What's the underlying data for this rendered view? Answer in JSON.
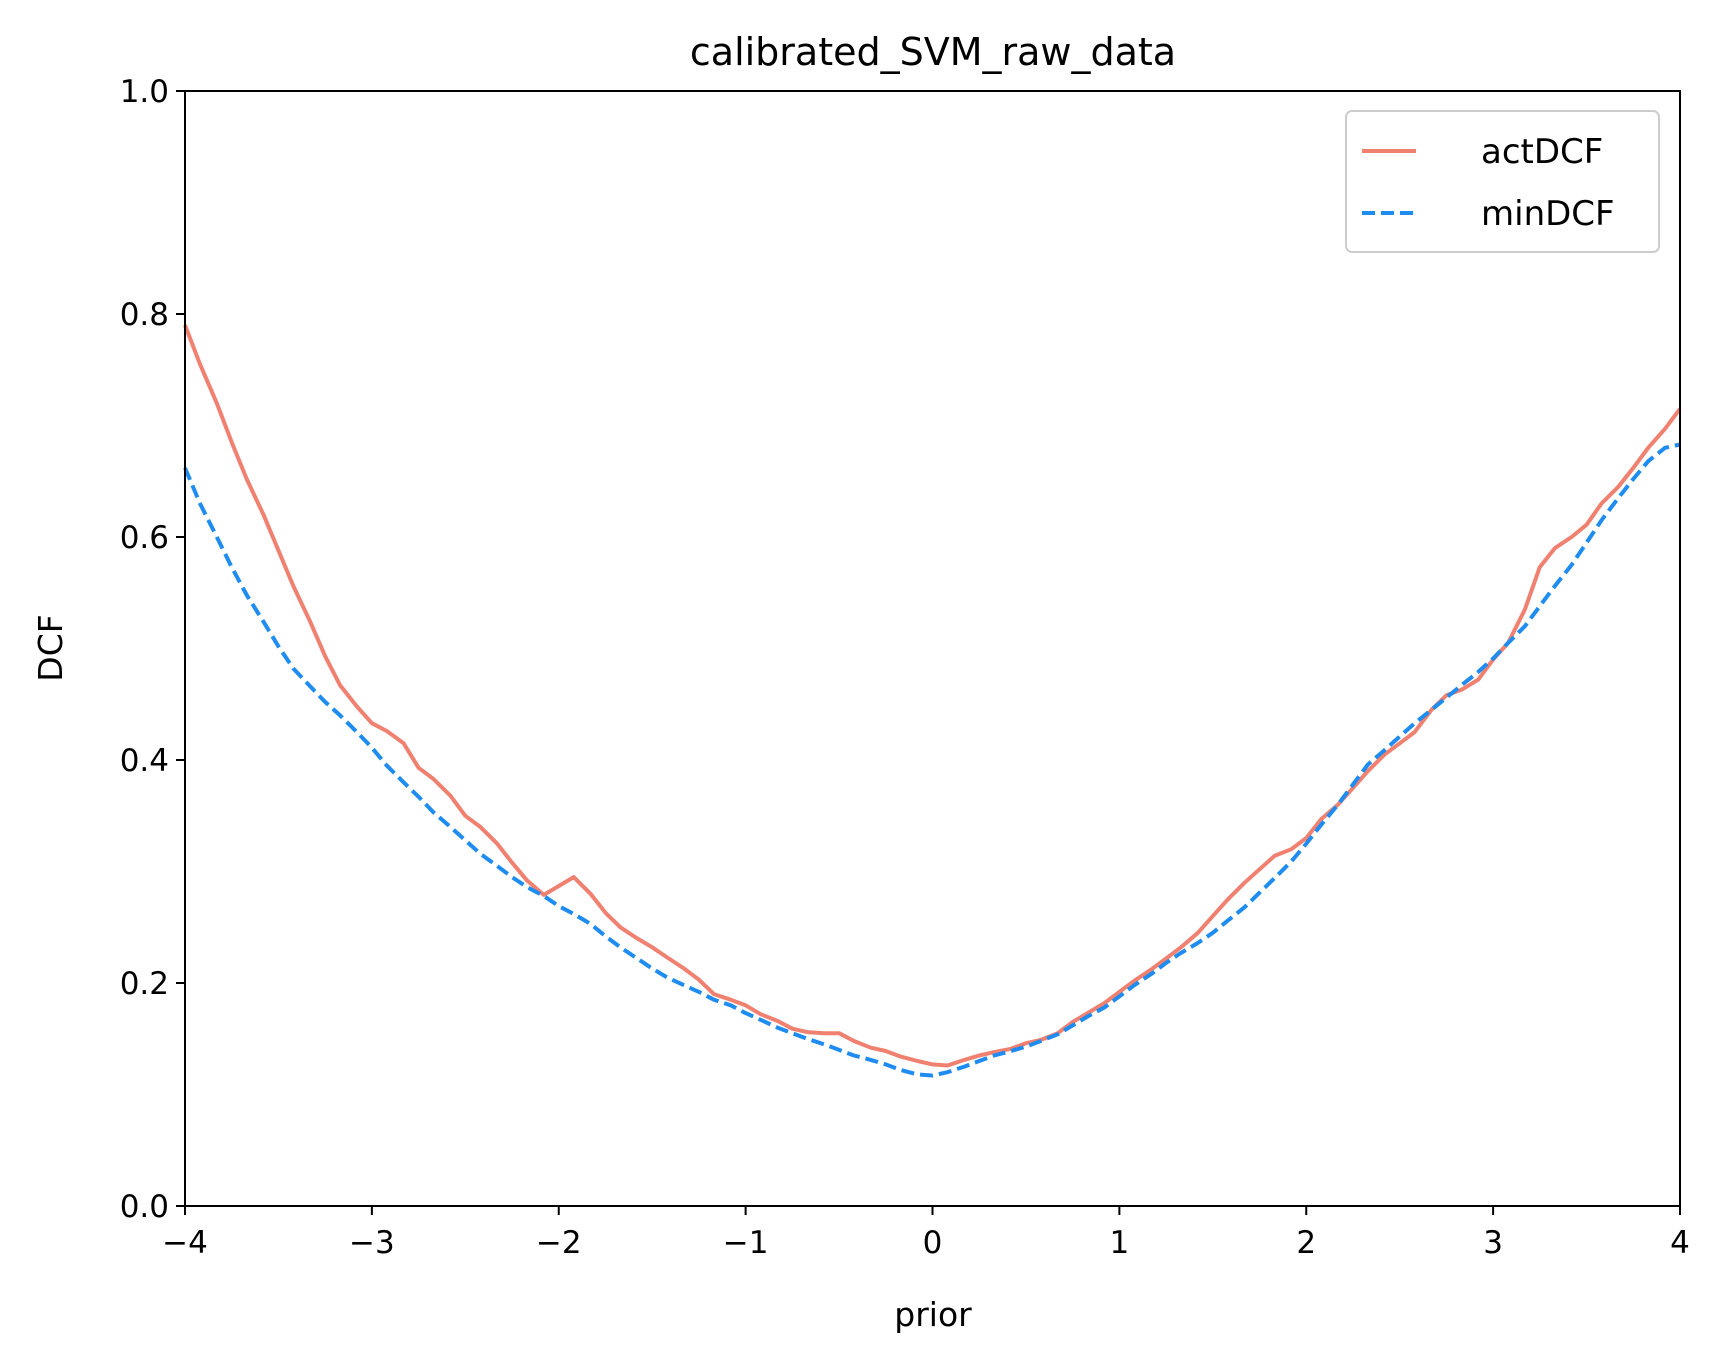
{
  "chart_data": {
    "type": "line",
    "title": "calibrated_SVM_raw_data",
    "xlabel": "prior",
    "ylabel": "DCF",
    "xlim": [
      -4,
      4
    ],
    "ylim": [
      0,
      1
    ],
    "x_ticks": [
      {
        "value": -4,
        "label": "−4"
      },
      {
        "value": -3,
        "label": "−3"
      },
      {
        "value": -2,
        "label": "−2"
      },
      {
        "value": -1,
        "label": "−1"
      },
      {
        "value": 0,
        "label": "0"
      },
      {
        "value": 1,
        "label": "1"
      },
      {
        "value": 2,
        "label": "2"
      },
      {
        "value": 3,
        "label": "3"
      },
      {
        "value": 4,
        "label": "4"
      }
    ],
    "y_ticks": [
      {
        "value": 0.0,
        "label": "0.0"
      },
      {
        "value": 0.2,
        "label": "0.2"
      },
      {
        "value": 0.4,
        "label": "0.4"
      },
      {
        "value": 0.6,
        "label": "0.6"
      },
      {
        "value": 0.8,
        "label": "0.8"
      },
      {
        "value": 1.0,
        "label": "1.0"
      }
    ],
    "grid": false,
    "legend_position": "top-right",
    "x": [
      -4.0,
      -3.92,
      -3.83,
      -3.75,
      -3.67,
      -3.58,
      -3.5,
      -3.42,
      -3.33,
      -3.25,
      -3.17,
      -3.08,
      -3.0,
      -2.92,
      -2.83,
      -2.75,
      -2.67,
      -2.58,
      -2.5,
      -2.42,
      -2.33,
      -2.25,
      -2.17,
      -2.08,
      -2.0,
      -1.92,
      -1.83,
      -1.75,
      -1.67,
      -1.58,
      -1.5,
      -1.42,
      -1.33,
      -1.25,
      -1.17,
      -1.08,
      -1.0,
      -0.92,
      -0.83,
      -0.75,
      -0.67,
      -0.58,
      -0.5,
      -0.42,
      -0.33,
      -0.25,
      -0.17,
      -0.08,
      0.0,
      0.08,
      0.17,
      0.25,
      0.33,
      0.42,
      0.5,
      0.58,
      0.67,
      0.75,
      0.83,
      0.92,
      1.0,
      1.08,
      1.17,
      1.25,
      1.33,
      1.42,
      1.5,
      1.58,
      1.67,
      1.75,
      1.83,
      1.92,
      2.0,
      2.08,
      2.17,
      2.25,
      2.33,
      2.42,
      2.5,
      2.58,
      2.67,
      2.75,
      2.83,
      2.92,
      3.0,
      3.08,
      3.17,
      3.25,
      3.33,
      3.42,
      3.5,
      3.58,
      3.67,
      3.75,
      3.83,
      3.92,
      4.0
    ],
    "series": [
      {
        "name": "actDCF",
        "color": "#f08070",
        "dash": "solid",
        "values": [
          0.79,
          0.755,
          0.72,
          0.685,
          0.652,
          0.62,
          0.588,
          0.556,
          0.524,
          0.493,
          0.467,
          0.448,
          0.433,
          0.426,
          0.415,
          0.393,
          0.383,
          0.368,
          0.35,
          0.34,
          0.325,
          0.308,
          0.292,
          0.279,
          0.287,
          0.295,
          0.28,
          0.263,
          0.25,
          0.24,
          0.232,
          0.223,
          0.213,
          0.203,
          0.19,
          0.185,
          0.18,
          0.172,
          0.166,
          0.159,
          0.156,
          0.155,
          0.155,
          0.148,
          0.142,
          0.139,
          0.134,
          0.13,
          0.127,
          0.126,
          0.131,
          0.135,
          0.138,
          0.141,
          0.146,
          0.149,
          0.155,
          0.165,
          0.173,
          0.182,
          0.192,
          0.202,
          0.212,
          0.222,
          0.232,
          0.245,
          0.26,
          0.275,
          0.29,
          0.302,
          0.314,
          0.32,
          0.33,
          0.347,
          0.36,
          0.375,
          0.39,
          0.405,
          0.415,
          0.425,
          0.445,
          0.458,
          0.463,
          0.472,
          0.49,
          0.505,
          0.535,
          0.573,
          0.59,
          0.6,
          0.611,
          0.63,
          0.645,
          0.662,
          0.68,
          0.697,
          0.715
        ]
      },
      {
        "name": "minDCF",
        "color": "#1e8cf0",
        "dash": "dashed",
        "values": [
          0.662,
          0.63,
          0.6,
          0.573,
          0.548,
          0.524,
          0.502,
          0.482,
          0.466,
          0.452,
          0.44,
          0.425,
          0.411,
          0.395,
          0.38,
          0.367,
          0.353,
          0.34,
          0.328,
          0.316,
          0.305,
          0.295,
          0.286,
          0.278,
          0.269,
          0.262,
          0.253,
          0.242,
          0.232,
          0.222,
          0.213,
          0.205,
          0.198,
          0.192,
          0.185,
          0.18,
          0.173,
          0.167,
          0.16,
          0.155,
          0.15,
          0.145,
          0.14,
          0.135,
          0.131,
          0.127,
          0.122,
          0.118,
          0.117,
          0.12,
          0.125,
          0.13,
          0.135,
          0.139,
          0.143,
          0.148,
          0.154,
          0.162,
          0.17,
          0.178,
          0.188,
          0.198,
          0.208,
          0.218,
          0.227,
          0.236,
          0.245,
          0.256,
          0.268,
          0.281,
          0.294,
          0.309,
          0.325,
          0.342,
          0.36,
          0.378,
          0.396,
          0.409,
          0.421,
          0.433,
          0.445,
          0.456,
          0.467,
          0.479,
          0.491,
          0.505,
          0.52,
          0.538,
          0.556,
          0.575,
          0.595,
          0.615,
          0.635,
          0.652,
          0.668,
          0.68,
          0.683
        ]
      }
    ]
  }
}
